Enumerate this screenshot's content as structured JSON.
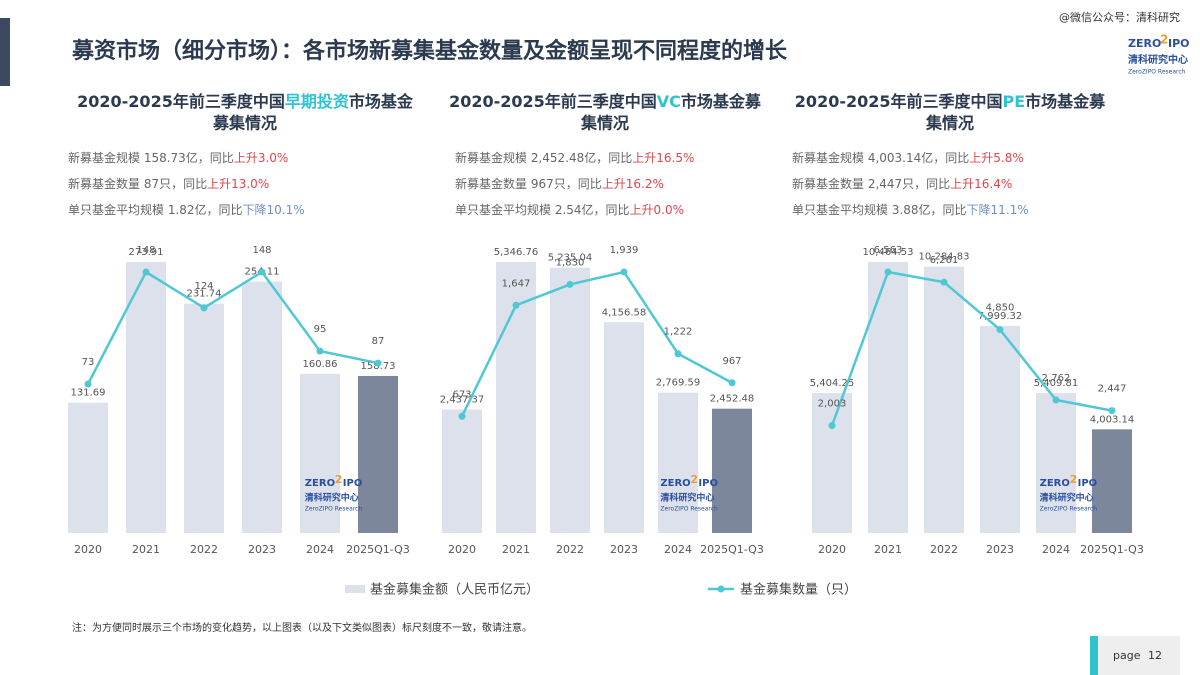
{
  "header": {
    "title": "募资市场（细分市场）：各市场新募集基金数量及金额呈现不同程度的增长",
    "watermark": "@微信公众号：清科研究"
  },
  "logo": {
    "zero": "ZERO",
    "two": "2",
    "ipo": "IPO",
    "cn": "清科研究中心",
    "en": "ZeroZIPO Research"
  },
  "legend": [
    "基金募集金额（人民币亿元）",
    "基金募集数量（只）"
  ],
  "chart_data": [
    {
      "type": "bar-line",
      "title": {
        "prefix": "2020-2025年前三季度中国",
        "highlight": "早期投资",
        "suffix": "市场基金",
        "line2": "募集情况"
      },
      "summary": [
        {
          "text": "新募基金规模 158.73亿，同比",
          "change": "上升3.0%",
          "change_color": "#e0454a"
        },
        {
          "text": "新募基金数量 87只，同比",
          "change": "上升13.0%",
          "change_color": "#e0454a"
        },
        {
          "text": "单只基金平均规模 1.82亿，同比",
          "change": "下降10.1%",
          "change_color": "#6f8fc4"
        }
      ],
      "categories": [
        "2020",
        "2021",
        "2022",
        "2023",
        "2024",
        "2025Q1-Q3"
      ],
      "series": [
        {
          "kind": "bar",
          "color": "#dde1ec",
          "last_color": "#7c879c",
          "values": [
            131.69,
            273.91,
            231.74,
            254.11,
            160.86,
            158.73
          ]
        },
        {
          "kind": "line",
          "color": "#4fc8d6",
          "values": [
            73,
            148,
            124,
            148,
            95,
            87
          ]
        }
      ]
    },
    {
      "type": "bar-line",
      "title": {
        "prefix": "2020-2025年前三季度中国",
        "highlight": "VC",
        "suffix": "市场基金募",
        "line2": "集情况"
      },
      "summary": [
        {
          "text": "新募基金规模 2,452.48亿，同比",
          "change": "上升16.5%",
          "change_color": "#e0454a"
        },
        {
          "text": "新募基金数量 967只，同比",
          "change": "上升16.2%",
          "change_color": "#e0454a"
        },
        {
          "text": "单只基金平均规模 2.54亿，同比",
          "change": "上升0.0%",
          "change_color": "#e0454a"
        }
      ],
      "categories": [
        "2020",
        "2021",
        "2022",
        "2023",
        "2024",
        "2025Q1-Q3"
      ],
      "series": [
        {
          "kind": "bar",
          "color": "#dde1ec",
          "last_color": "#7c879c",
          "values": [
            2437.37,
            5346.76,
            5235.04,
            4156.58,
            2769.59,
            2452.48
          ],
          "value_labels": [
            "2,437.37",
            "5,346.76",
            "5,235.04",
            "4,156.58",
            "2,769.59",
            "2,452.48"
          ]
        },
        {
          "kind": "line",
          "color": "#4fc8d6",
          "values": [
            673,
            1647,
            1830,
            1939,
            1222,
            967
          ],
          "value_labels": [
            "673",
            "1,647",
            "1,830",
            "1,939",
            "1,222",
            "967"
          ]
        }
      ]
    },
    {
      "type": "bar-line",
      "title": {
        "prefix": "2020-2025年前三季度中国",
        "highlight": "PE",
        "suffix": "市场基金募",
        "line2": "集情况"
      },
      "summary": [
        {
          "text": "新募基金规模 4,003.14亿，同比",
          "change": "上升5.8%",
          "change_color": "#e0454a"
        },
        {
          "text": "新募基金数量 2,447只，同比",
          "change": "上升16.4%",
          "change_color": "#e0454a"
        },
        {
          "text": "单只基金平均规模 3.88亿，同比",
          "change": "下降11.1%",
          "change_color": "#6f8fc4"
        }
      ],
      "categories": [
        "2020",
        "2021",
        "2022",
        "2023",
        "2024",
        "2025Q1-Q3"
      ],
      "series": [
        {
          "kind": "bar",
          "color": "#dde1ec",
          "last_color": "#7c879c",
          "values": [
            5404.25,
            10464.53,
            10284.83,
            7999.32,
            5409.81,
            4003.14
          ],
          "value_labels": [
            "5,404.25",
            "10,464.53",
            "10,284.83",
            "7,999.32",
            "5,409.81",
            "4,003.14"
          ]
        },
        {
          "kind": "line",
          "color": "#4fc8d6",
          "values": [
            2003,
            6563,
            6261,
            4850,
            2762,
            2447
          ],
          "value_labels": [
            "2,003",
            "6,563",
            "6,261",
            "4,850",
            "2,762",
            "2,447"
          ]
        }
      ]
    }
  ],
  "note": "注：为方便同时展示三个市场的变化趋势，以上图表（以及下文类似图表）标尺刻度不一致，敬请注意。",
  "page": {
    "label": "page",
    "number": "12"
  }
}
